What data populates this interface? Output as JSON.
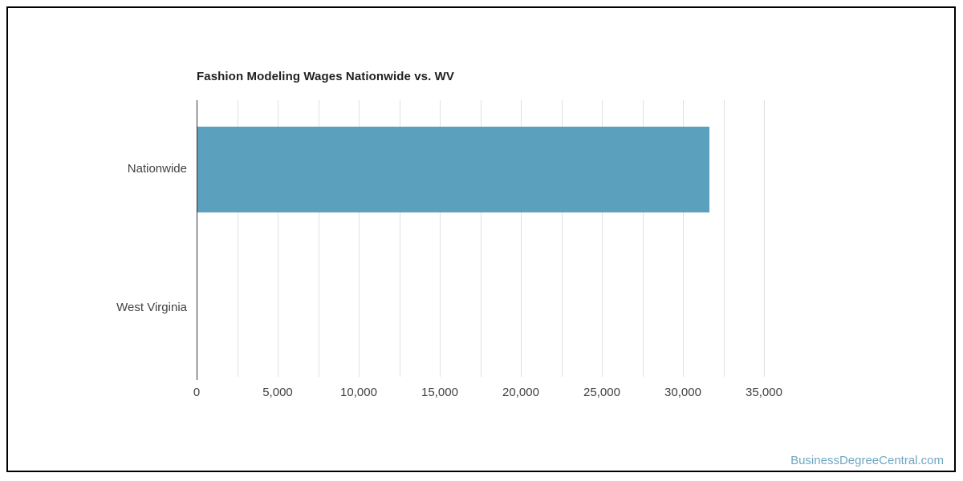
{
  "title": "Fashion Modeling Wages Nationwide vs. WV",
  "watermark": {
    "text": "BusinessDegreeCentral.com",
    "color": "#6FA7C4"
  },
  "chart_data": {
    "type": "bar",
    "orientation": "horizontal",
    "title": "Fashion Modeling Wages Nationwide vs. WV",
    "categories": [
      "Nationwide",
      "West Virginia"
    ],
    "values": [
      31600,
      0
    ],
    "xlabel": "",
    "ylabel": "",
    "xlim": [
      0,
      35000
    ],
    "x_major_ticks": [
      0,
      5000,
      10000,
      15000,
      20000,
      25000,
      30000,
      35000
    ],
    "x_tick_labels": [
      "0",
      "5,000",
      "10,000",
      "15,000",
      "20,000",
      "25,000",
      "30,000",
      "35,000"
    ],
    "x_minor_tick_step": 2500,
    "grid": "vertical lines every 2,500",
    "legend_position": "none",
    "bar_color": "#5BA0BC",
    "axis_color": "#333333",
    "gridline_color": "#E0E0E0",
    "label_color": "#424242",
    "title_color": "#212121"
  }
}
